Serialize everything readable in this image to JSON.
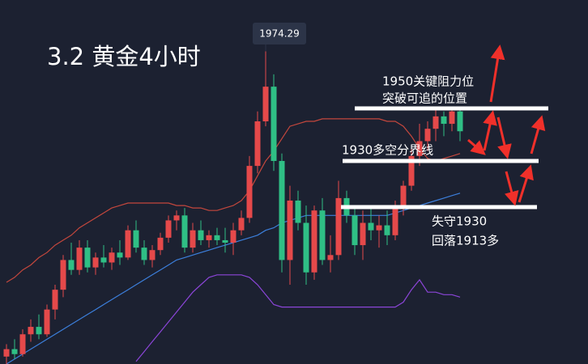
{
  "chart_data": {
    "type": "candlestick",
    "title": "3.2 黄金4小时",
    "annotations": [
      "1950关键阻力位",
      "突破可追的位置",
      "1930多空分界线",
      "失守1930",
      "回落1913多"
    ],
    "ylim": [
      1848,
      1995
    ],
    "up_color": "#e5494a",
    "down_color": "#2fbf85",
    "ohlc": [
      [
        1851,
        1856,
        1848,
        1854
      ],
      [
        1854,
        1858,
        1850,
        1852
      ],
      [
        1852,
        1862,
        1851,
        1860
      ],
      [
        1860,
        1866,
        1857,
        1863
      ],
      [
        1863,
        1868,
        1858,
        1860
      ],
      [
        1860,
        1872,
        1859,
        1870
      ],
      [
        1870,
        1880,
        1866,
        1878
      ],
      [
        1878,
        1892,
        1875,
        1890
      ],
      [
        1890,
        1897,
        1884,
        1886
      ],
      [
        1886,
        1898,
        1884,
        1895
      ],
      [
        1895,
        1898,
        1885,
        1887
      ],
      [
        1887,
        1893,
        1884,
        1891
      ],
      [
        1891,
        1896,
        1887,
        1889
      ],
      [
        1889,
        1895,
        1886,
        1893
      ],
      [
        1893,
        1898,
        1888,
        1891
      ],
      [
        1891,
        1904,
        1890,
        1902
      ],
      [
        1902,
        1906,
        1893,
        1895
      ],
      [
        1895,
        1898,
        1888,
        1890
      ],
      [
        1890,
        1896,
        1887,
        1894
      ],
      [
        1894,
        1901,
        1892,
        1899
      ],
      [
        1899,
        1908,
        1897,
        1906
      ],
      [
        1906,
        1910,
        1902,
        1908
      ],
      [
        1908,
        1911,
        1893,
        1895
      ],
      [
        1895,
        1905,
        1893,
        1902
      ],
      [
        1902,
        1906,
        1896,
        1898
      ],
      [
        1898,
        1902,
        1895,
        1900
      ],
      [
        1900,
        1903,
        1896,
        1898
      ],
      [
        1898,
        1903,
        1893,
        1897
      ],
      [
        1897,
        1905,
        1892,
        1902
      ],
      [
        1902,
        1910,
        1900,
        1907
      ],
      [
        1907,
        1932,
        1905,
        1928
      ],
      [
        1928,
        1950,
        1925,
        1946
      ],
      [
        1946,
        1974.29,
        1944,
        1960
      ],
      [
        1960,
        1965,
        1926,
        1930
      ],
      [
        1930,
        1933,
        1885,
        1890
      ],
      [
        1890,
        1920,
        1880,
        1914
      ],
      [
        1914,
        1918,
        1902,
        1905
      ],
      [
        1905,
        1912,
        1880,
        1885
      ],
      [
        1885,
        1912,
        1882,
        1910
      ],
      [
        1910,
        1915,
        1888,
        1890
      ],
      [
        1890,
        1900,
        1885,
        1892
      ],
      [
        1892,
        1922,
        1890,
        1915
      ],
      [
        1915,
        1918,
        1905,
        1908
      ],
      [
        1908,
        1912,
        1892,
        1896
      ],
      [
        1896,
        1910,
        1890,
        1905
      ],
      [
        1905,
        1912,
        1898,
        1902
      ],
      [
        1902,
        1908,
        1895,
        1904
      ],
      [
        1904,
        1910,
        1896,
        1900
      ],
      [
        1900,
        1914,
        1898,
        1911
      ],
      [
        1911,
        1922,
        1908,
        1920
      ],
      [
        1920,
        1935,
        1918,
        1932
      ],
      [
        1932,
        1945,
        1928,
        1938
      ],
      [
        1938,
        1946,
        1934,
        1943
      ],
      [
        1943,
        1952,
        1938,
        1948
      ],
      [
        1948,
        1950,
        1940,
        1945
      ],
      [
        1945,
        1952,
        1942,
        1950
      ],
      [
        1950,
        1951,
        1938,
        1942
      ]
    ],
    "bands": [
      {
        "color": "#c4473d",
        "values": [
          1881,
          1883,
          1886,
          1888,
          1891,
          1893,
          1896,
          1898,
          1900,
          1903,
          1905,
          1907,
          1909,
          1911,
          1912,
          1913,
          1913,
          1913,
          1913,
          1913,
          1913,
          1912,
          1912,
          1911,
          1911,
          1910,
          1910,
          1911,
          1912,
          1914,
          1918,
          1924,
          1930,
          1934,
          1939,
          1944,
          1945,
          1946,
          1946,
          1947,
          1947,
          1947,
          1947,
          1947,
          1947,
          1947,
          1947,
          1946,
          1946,
          1944,
          1940,
          1935,
          1931,
          1930,
          1931,
          1932,
          1933
        ]
      },
      {
        "color": "#3c7fdc",
        "values": [
          1848,
          1850,
          1852,
          1854,
          1856,
          1858,
          1860,
          1862,
          1864,
          1866,
          1868,
          1870,
          1872,
          1874,
          1876,
          1878,
          1880,
          1882,
          1884,
          1886,
          1888,
          1890,
          1891,
          1892,
          1893,
          1894,
          1895,
          1896,
          1897,
          1898,
          1899,
          1900,
          1902,
          1903,
          1905,
          1906,
          1907,
          1908,
          1908,
          1908,
          1908,
          1908,
          1908,
          1908,
          1908,
          1908,
          1908,
          1908,
          1909,
          1910,
          1911,
          1912,
          1913,
          1914,
          1915,
          1916,
          1917
        ]
      },
      {
        "color": "#8b45d8",
        "values": [
          null,
          null,
          null,
          null,
          null,
          null,
          null,
          null,
          null,
          null,
          null,
          null,
          null,
          null,
          null,
          null,
          1849,
          1853,
          1857,
          1861,
          1865,
          1869,
          1873,
          1877,
          1880,
          1883,
          1884,
          1884,
          1884,
          1884,
          1883,
          1880,
          1876,
          1872,
          1871,
          1871,
          1871,
          1871,
          1871,
          1871,
          1871,
          1871,
          1871,
          1871,
          1871,
          1871,
          1871,
          1871,
          1871,
          1873,
          1878,
          1882,
          1877,
          1877,
          1876,
          1876,
          1875
        ]
      }
    ]
  }
}
